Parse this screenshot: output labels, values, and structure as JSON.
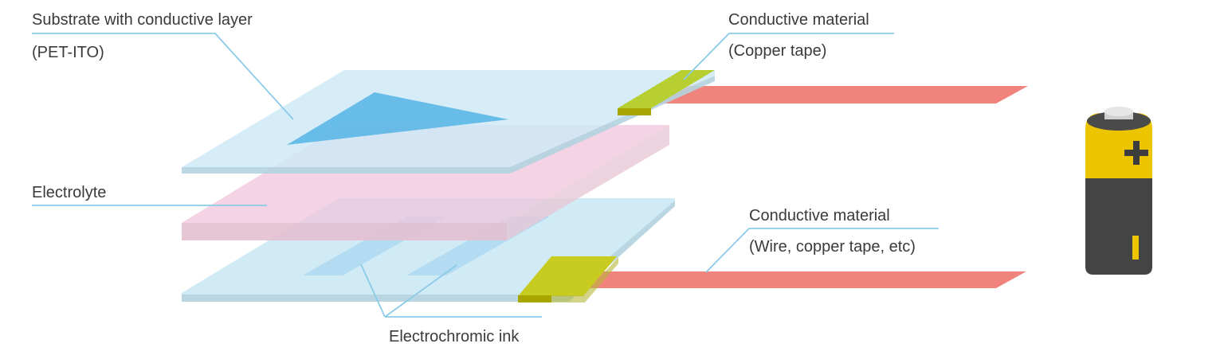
{
  "labels": {
    "substrate_line1": "Substrate with conductive layer",
    "substrate_line2": "(PET-ITO)",
    "electrolyte": "Electrolyte",
    "electrochromic_ink": "Electrochromic ink",
    "conductive_top_line1": "Conductive material",
    "conductive_top_line2": "(Copper tape)",
    "conductive_bottom_line1": "Conductive material",
    "conductive_bottom_line2": "(Wire, copper tape, etc)"
  },
  "battery": {
    "positive_symbol": "+",
    "negative_symbol": "I"
  },
  "colors": {
    "substrate": "#cde9f6",
    "substrate_edge": "#b4d3e0",
    "electrolyte": "#f1cfe3",
    "electrolyte_edge": "#e2b9ca",
    "ink": "#6ebde6",
    "copper_tape": "#b7cf30",
    "copper_tape_edge": "#a4a300",
    "wire": "#f0837c",
    "leader_line": "#8ccbe8",
    "battery_top": "#ecc400",
    "battery_body": "#444444",
    "battery_cap": "#d9d9d9"
  }
}
